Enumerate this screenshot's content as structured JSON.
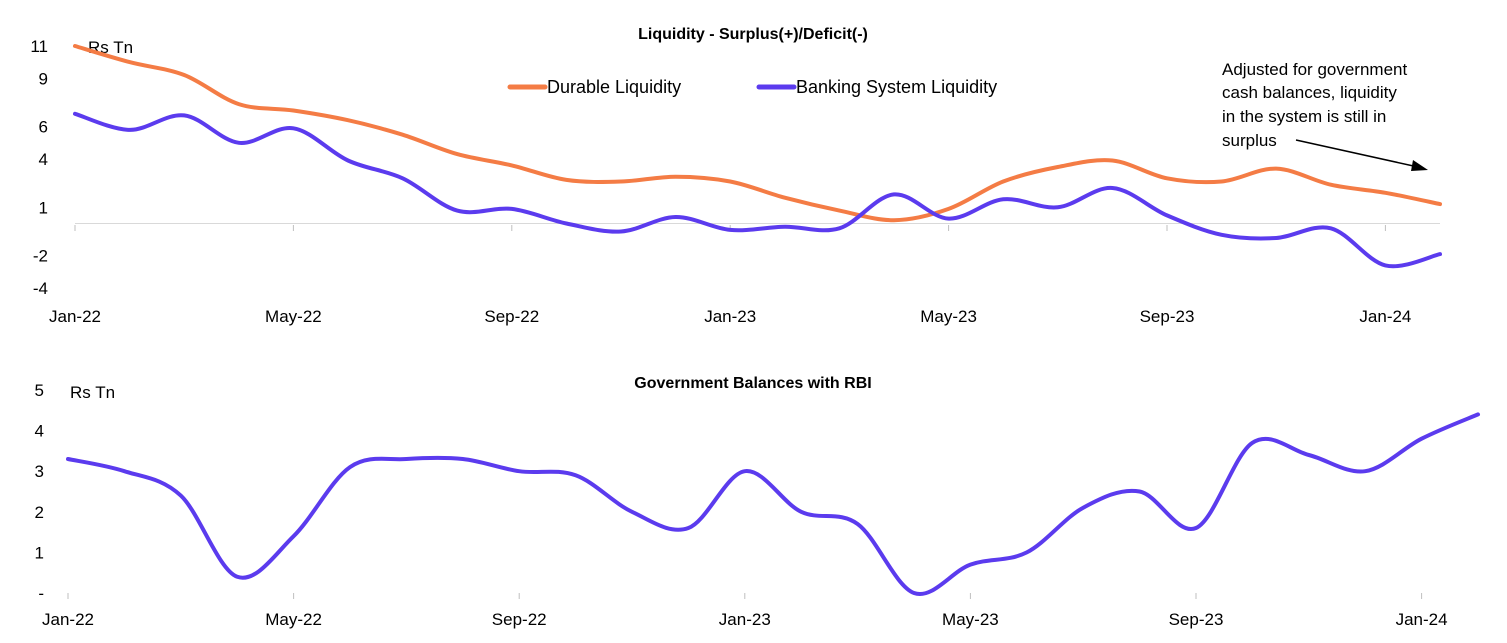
{
  "chart_data": [
    {
      "type": "line",
      "title": "Liquidity - Surplus(+)/Deficit(-)",
      "ylabel": "Rs Tn",
      "ylim": [
        -4,
        11
      ],
      "yticks": [
        11,
        9,
        6,
        4,
        1,
        -2,
        -4
      ],
      "xticks": [
        "Jan-22",
        "May-22",
        "Sep-22",
        "Jan-23",
        "May-23",
        "Sep-23",
        "Jan-24"
      ],
      "x_range": [
        "2022-01",
        "2024-02"
      ],
      "grid": false,
      "legend": "top-center",
      "annotation": {
        "lines": [
          "Adjusted for government",
          "cash balances, liquidity",
          "in the system is still in",
          "surplus"
        ]
      },
      "x": [
        "2022-01",
        "2022-02",
        "2022-03",
        "2022-04",
        "2022-05",
        "2022-06",
        "2022-07",
        "2022-08",
        "2022-09",
        "2022-10",
        "2022-11",
        "2022-12",
        "2023-01",
        "2023-02",
        "2023-03",
        "2023-04",
        "2023-05",
        "2023-06",
        "2023-07",
        "2023-08",
        "2023-09",
        "2023-10",
        "2023-11",
        "2023-12",
        "2024-01",
        "2024-02"
      ],
      "series": [
        {
          "name": "Durable Liquidity",
          "color": "#F47C45",
          "values": [
            11.0,
            10.0,
            9.2,
            7.4,
            7.0,
            6.4,
            5.5,
            4.3,
            3.6,
            2.7,
            2.6,
            2.9,
            2.6,
            1.6,
            0.8,
            0.2,
            0.9,
            2.6,
            3.5,
            3.9,
            2.8,
            2.6,
            3.4,
            2.4,
            1.9,
            1.2
          ]
        },
        {
          "name": "Banking System Liquidity",
          "color": "#5B3BEE",
          "values": [
            6.8,
            5.8,
            6.7,
            5.0,
            5.9,
            3.9,
            2.8,
            0.8,
            0.9,
            0.0,
            -0.5,
            0.4,
            -0.4,
            -0.2,
            -0.3,
            1.8,
            0.3,
            1.5,
            1.0,
            2.2,
            0.5,
            -0.7,
            -0.9,
            -0.3,
            -2.6,
            -1.9
          ]
        }
      ]
    },
    {
      "type": "line",
      "title": "Government Balances with RBI",
      "ylabel": "Rs Tn",
      "ylim": [
        0,
        5
      ],
      "yticks": [
        "5",
        "4",
        "3",
        "2",
        "1",
        "-"
      ],
      "xticks": [
        "Jan-22",
        "May-22",
        "Sep-22",
        "Jan-23",
        "May-23",
        "Sep-23",
        "Jan-24"
      ],
      "x_range": [
        "2022-01",
        "2024-02"
      ],
      "grid": false,
      "x": [
        "2022-01",
        "2022-02",
        "2022-03",
        "2022-04",
        "2022-05",
        "2022-06",
        "2022-07",
        "2022-08",
        "2022-09",
        "2022-10",
        "2022-11",
        "2022-12",
        "2023-01",
        "2023-02",
        "2023-03",
        "2023-04",
        "2023-05",
        "2023-06",
        "2023-07",
        "2023-08",
        "2023-09",
        "2023-10",
        "2023-11",
        "2023-12",
        "2024-01",
        "2024-02"
      ],
      "series": [
        {
          "color": "#5B3BEE",
          "values": [
            3.3,
            3.0,
            2.4,
            0.4,
            1.4,
            3.1,
            3.3,
            3.3,
            3.0,
            2.9,
            2.0,
            1.6,
            3.0,
            2.0,
            1.7,
            0.0,
            0.7,
            1.0,
            2.1,
            2.5,
            1.6,
            3.7,
            3.4,
            3.0,
            3.8,
            4.4
          ]
        }
      ]
    }
  ]
}
